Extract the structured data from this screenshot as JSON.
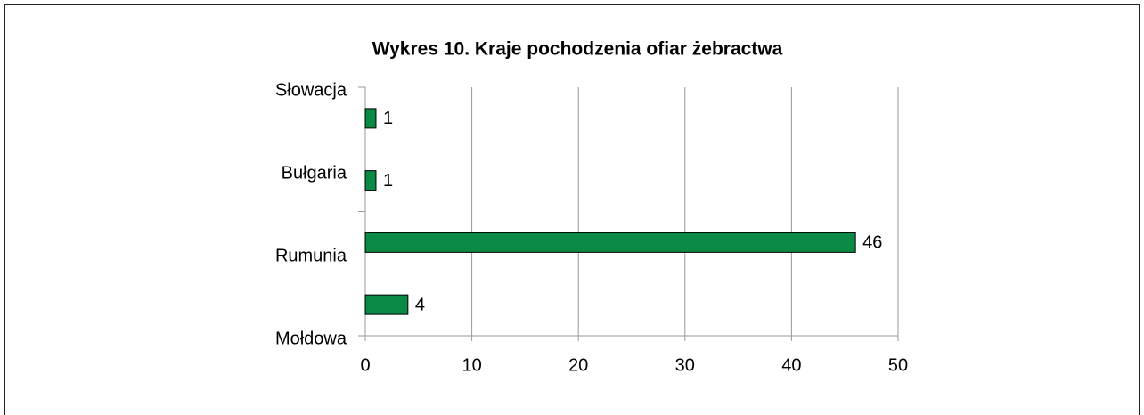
{
  "chart_data": {
    "type": "barh",
    "title": "Wykres 10. Kraje pochodzenia ofiar żebractwa",
    "categories": [
      "Słowacja",
      "Bułgaria",
      "Rumunia",
      "Mołdowa"
    ],
    "values": [
      1,
      1,
      46,
      4
    ],
    "color": "#0b8a45",
    "xlim": [
      0,
      50
    ],
    "xticks": [
      0,
      10,
      20,
      30,
      40,
      50
    ],
    "grid": true
  }
}
